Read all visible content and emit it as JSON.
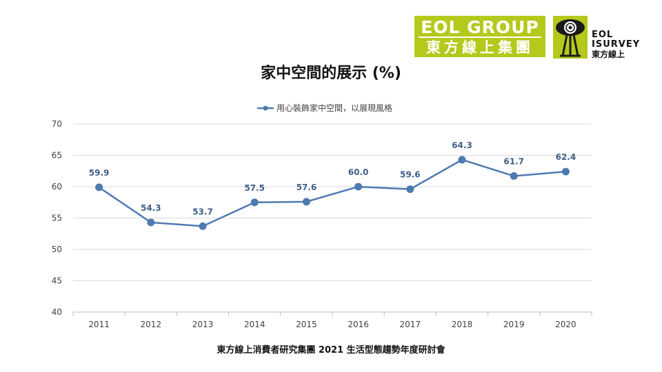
{
  "logo": {
    "eol_top": "EOL GROUP",
    "eol_bottom": "東方線上集團",
    "survey_line1": "EOL",
    "survey_line2": "ISURVEY",
    "survey_line3": "東方線上",
    "brand_color": "#b5c91c"
  },
  "footer": "東方線上消費者研究集團 2021 生活型態趨勢年度研討會",
  "chart_data": {
    "type": "line",
    "title": "家中空間的展示 (%)",
    "categories": [
      "2011",
      "2012",
      "2013",
      "2014",
      "2015",
      "2016",
      "2017",
      "2018",
      "2019",
      "2020"
    ],
    "series": [
      {
        "name": "用心裝飾家中空間，以展現風格",
        "values": [
          59.9,
          54.3,
          53.7,
          57.5,
          57.6,
          60.0,
          59.6,
          64.3,
          61.7,
          62.4
        ],
        "color": "#4e7ab0"
      }
    ],
    "data_labels": [
      "59.9",
      "54.3",
      "53.7",
      "57.5",
      "57.6",
      "60.0",
      "59.6",
      "64.3",
      "61.7",
      "62.4"
    ],
    "ylim": [
      40,
      70
    ],
    "yticks": [
      40,
      45,
      50,
      55,
      60,
      65,
      70
    ],
    "grid": true,
    "legend": "top"
  }
}
